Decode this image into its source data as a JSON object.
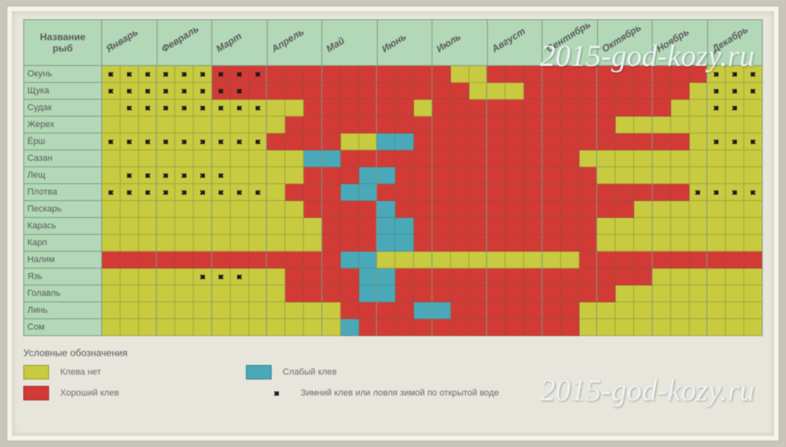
{
  "colors": {
    "no_bite": "#c8ca40",
    "good_bite": "#d23b35",
    "weak_bite": "#4aa9b8",
    "header_bg": "#b3d8b8",
    "border": "#7a9a7e",
    "frame_bg": "#e8e6dc"
  },
  "header": {
    "name_label_l1": "Название",
    "name_label_l2": "рыб"
  },
  "months": [
    "Январь",
    "Февраль",
    "Март",
    "Апрель",
    "Май",
    "Июнь",
    "Июль",
    "Август",
    "Сентябрь",
    "Октябрь",
    "Ноябрь",
    "Декабрь"
  ],
  "fish": [
    {
      "name": "Окунь",
      "cells": [
        "nd",
        "nd",
        "nd",
        "nd",
        "nd",
        "nd",
        "rd",
        "rd",
        "rd",
        "r",
        "r",
        "r",
        "r",
        "r",
        "r",
        "r",
        "r",
        "r",
        "r",
        "n",
        "n",
        "r",
        "r",
        "r",
        "r",
        "r",
        "r",
        "r",
        "r",
        "r",
        "r",
        "r",
        "r",
        "nd",
        "nd",
        "nd"
      ]
    },
    {
      "name": "Щука",
      "cells": [
        "nd",
        "nd",
        "nd",
        "nd",
        "nd",
        "nd",
        "rd",
        "rd",
        "r",
        "r",
        "r",
        "r",
        "r",
        "r",
        "r",
        "r",
        "r",
        "r",
        "r",
        "r",
        "n",
        "n",
        "n",
        "r",
        "r",
        "r",
        "r",
        "r",
        "r",
        "r",
        "r",
        "r",
        "n",
        "nd",
        "nd",
        "nd"
      ]
    },
    {
      "name": "Судак",
      "cells": [
        "n",
        "nd",
        "nd",
        "nd",
        "nd",
        "nd",
        "nd",
        "nd",
        "nd",
        "n",
        "n",
        "r",
        "r",
        "r",
        "r",
        "r",
        "r",
        "n",
        "r",
        "r",
        "r",
        "r",
        "r",
        "r",
        "r",
        "r",
        "r",
        "r",
        "r",
        "r",
        "r",
        "n",
        "n",
        "nd",
        "nd",
        "n"
      ]
    },
    {
      "name": "Жерех",
      "cells": [
        "n",
        "n",
        "n",
        "n",
        "n",
        "n",
        "n",
        "n",
        "n",
        "n",
        "r",
        "r",
        "r",
        "r",
        "r",
        "r",
        "r",
        "r",
        "r",
        "r",
        "r",
        "r",
        "r",
        "r",
        "r",
        "r",
        "r",
        "r",
        "n",
        "n",
        "n",
        "n",
        "n",
        "n",
        "n",
        "n"
      ]
    },
    {
      "name": "Ёрш",
      "cells": [
        "nd",
        "nd",
        "nd",
        "nd",
        "nd",
        "nd",
        "nd",
        "nd",
        "nd",
        "r",
        "r",
        "r",
        "r",
        "n",
        "n",
        "w",
        "w",
        "r",
        "r",
        "r",
        "r",
        "r",
        "r",
        "r",
        "r",
        "r",
        "r",
        "r",
        "r",
        "r",
        "r",
        "r",
        "n",
        "nd",
        "nd",
        "nd"
      ]
    },
    {
      "name": "Сазан",
      "cells": [
        "n",
        "n",
        "n",
        "n",
        "n",
        "n",
        "n",
        "n",
        "n",
        "n",
        "n",
        "w",
        "w",
        "r",
        "r",
        "r",
        "r",
        "r",
        "r",
        "r",
        "r",
        "r",
        "r",
        "r",
        "r",
        "r",
        "n",
        "n",
        "n",
        "n",
        "n",
        "n",
        "n",
        "n",
        "n",
        "n"
      ]
    },
    {
      "name": "Лещ",
      "cells": [
        "n",
        "nd",
        "nd",
        "nd",
        "nd",
        "nd",
        "nd",
        "n",
        "n",
        "n",
        "n",
        "r",
        "r",
        "r",
        "w",
        "w",
        "r",
        "r",
        "r",
        "r",
        "r",
        "r",
        "r",
        "r",
        "r",
        "r",
        "r",
        "n",
        "n",
        "n",
        "n",
        "n",
        "n",
        "n",
        "n",
        "n"
      ]
    },
    {
      "name": "Плотва",
      "cells": [
        "nd",
        "nd",
        "nd",
        "nd",
        "nd",
        "nd",
        "nd",
        "nd",
        "nd",
        "n",
        "r",
        "r",
        "r",
        "w",
        "w",
        "r",
        "r",
        "r",
        "r",
        "r",
        "r",
        "r",
        "r",
        "r",
        "r",
        "r",
        "r",
        "r",
        "r",
        "r",
        "r",
        "r",
        "nd",
        "nd",
        "nd",
        "nd"
      ]
    },
    {
      "name": "Пескарь",
      "cells": [
        "n",
        "n",
        "n",
        "n",
        "n",
        "n",
        "n",
        "n",
        "n",
        "n",
        "n",
        "r",
        "r",
        "r",
        "r",
        "w",
        "r",
        "r",
        "r",
        "r",
        "r",
        "r",
        "r",
        "r",
        "r",
        "r",
        "r",
        "r",
        "r",
        "n",
        "n",
        "n",
        "n",
        "n",
        "n",
        "n"
      ]
    },
    {
      "name": "Карась",
      "cells": [
        "n",
        "n",
        "n",
        "n",
        "n",
        "n",
        "n",
        "n",
        "n",
        "n",
        "n",
        "n",
        "r",
        "r",
        "r",
        "w",
        "w",
        "r",
        "r",
        "r",
        "r",
        "r",
        "r",
        "r",
        "r",
        "r",
        "r",
        "n",
        "n",
        "n",
        "n",
        "n",
        "n",
        "n",
        "n",
        "n"
      ]
    },
    {
      "name": "Карп",
      "cells": [
        "n",
        "n",
        "n",
        "n",
        "n",
        "n",
        "n",
        "n",
        "n",
        "n",
        "n",
        "n",
        "r",
        "r",
        "r",
        "w",
        "w",
        "r",
        "r",
        "r",
        "r",
        "r",
        "r",
        "r",
        "r",
        "r",
        "r",
        "n",
        "n",
        "n",
        "n",
        "n",
        "n",
        "n",
        "n",
        "n"
      ]
    },
    {
      "name": "Налим",
      "cells": [
        "r",
        "r",
        "r",
        "r",
        "r",
        "r",
        "r",
        "r",
        "r",
        "r",
        "r",
        "r",
        "r",
        "w",
        "w",
        "n",
        "n",
        "n",
        "n",
        "n",
        "n",
        "n",
        "n",
        "n",
        "n",
        "n",
        "r",
        "r",
        "r",
        "r",
        "r",
        "r",
        "r",
        "r",
        "r",
        "r"
      ]
    },
    {
      "name": "Язь",
      "cells": [
        "n",
        "n",
        "n",
        "n",
        "n",
        "nd",
        "nd",
        "nd",
        "n",
        "n",
        "r",
        "r",
        "r",
        "r",
        "w",
        "w",
        "r",
        "r",
        "r",
        "r",
        "r",
        "r",
        "r",
        "r",
        "r",
        "r",
        "r",
        "r",
        "r",
        "r",
        "n",
        "n",
        "n",
        "n",
        "n",
        "n"
      ]
    },
    {
      "name": "Голавль",
      "cells": [
        "n",
        "n",
        "n",
        "n",
        "n",
        "n",
        "n",
        "n",
        "n",
        "n",
        "r",
        "r",
        "r",
        "r",
        "w",
        "w",
        "r",
        "r",
        "r",
        "r",
        "r",
        "r",
        "r",
        "r",
        "r",
        "r",
        "r",
        "r",
        "n",
        "n",
        "n",
        "n",
        "n",
        "n",
        "n",
        "n"
      ]
    },
    {
      "name": "Линь",
      "cells": [
        "n",
        "n",
        "n",
        "n",
        "n",
        "n",
        "n",
        "n",
        "n",
        "n",
        "n",
        "n",
        "n",
        "r",
        "r",
        "r",
        "r",
        "w",
        "w",
        "r",
        "r",
        "r",
        "r",
        "r",
        "r",
        "r",
        "n",
        "n",
        "n",
        "n",
        "n",
        "n",
        "n",
        "n",
        "n",
        "n"
      ]
    },
    {
      "name": "Сом",
      "cells": [
        "n",
        "n",
        "n",
        "n",
        "n",
        "n",
        "n",
        "n",
        "n",
        "n",
        "n",
        "n",
        "n",
        "w",
        "r",
        "r",
        "r",
        "r",
        "r",
        "r",
        "r",
        "r",
        "r",
        "r",
        "r",
        "r",
        "n",
        "n",
        "n",
        "n",
        "n",
        "n",
        "n",
        "n",
        "n",
        "n"
      ]
    }
  ],
  "legend": {
    "title": "Условные обозначения",
    "no_bite": "Клева нет",
    "good_bite": "Хороший клев",
    "weak_bite": "Слабый клев",
    "winter": "Зимний клев или ловля зимой по открытой воде"
  },
  "watermark": "2015-god-kozy.ru"
}
